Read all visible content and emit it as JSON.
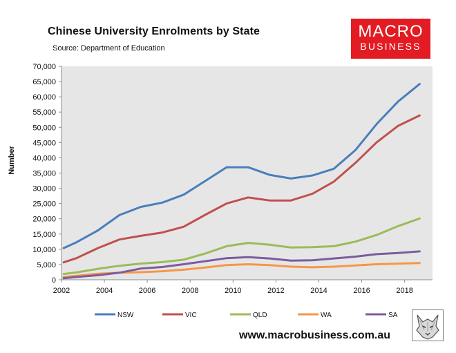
{
  "header": {
    "title": "Chinese University Enrolments by State",
    "subtitle": "Source: Department of Education"
  },
  "brand": {
    "line1": "MACRO",
    "line2": "BUSINESS",
    "color": "#e31b23"
  },
  "footer": {
    "website": "www.macrobusiness.com.au"
  },
  "chart_data": {
    "type": "line",
    "title": "Chinese University Enrolments by State",
    "subtitle": "Source: Department of Education",
    "xlabel": "",
    "ylabel": "Number",
    "xlim": [
      2002,
      2019.3
    ],
    "ylim": [
      0,
      70000
    ],
    "x_ticks": [
      2002,
      2004,
      2006,
      2008,
      2010,
      2012,
      2014,
      2016,
      2018
    ],
    "y_ticks": [
      0,
      5000,
      10000,
      15000,
      20000,
      25000,
      30000,
      35000,
      40000,
      45000,
      50000,
      55000,
      60000,
      65000,
      70000
    ],
    "y_tick_labels": [
      "0",
      "5,000",
      "10,000",
      "15,000",
      "20,000",
      "25,000",
      "30,000",
      "35,000",
      "40,000",
      "45,000",
      "50,000",
      "55,000",
      "60,000",
      "65,000",
      "70,000"
    ],
    "grid": false,
    "background": "#e6e6e6",
    "legend_position": "bottom",
    "x": [
      2002.1,
      2002.7,
      2003.7,
      2004.7,
      2005.7,
      2006.7,
      2007.7,
      2008.7,
      2009.7,
      2010.7,
      2011.7,
      2012.7,
      2013.7,
      2014.7,
      2015.7,
      2016.7,
      2017.7,
      2018.7
    ],
    "series": [
      {
        "name": "NSW",
        "color": "#4a7ebb",
        "values": [
          10400,
          12300,
          16200,
          21200,
          23900,
          25300,
          27900,
          32400,
          36900,
          36900,
          34400,
          33200,
          34200,
          36400,
          42500,
          51100,
          58500,
          64200
        ]
      },
      {
        "name": "VIC",
        "color": "#c0504d",
        "values": [
          5700,
          7100,
          10400,
          13200,
          14400,
          15500,
          17400,
          21300,
          25000,
          27000,
          26000,
          26000,
          28200,
          32200,
          38300,
          45100,
          50500,
          53900
        ]
      },
      {
        "name": "QLD",
        "color": "#9bbb59",
        "values": [
          1900,
          2400,
          3600,
          4600,
          5300,
          5800,
          6600,
          8600,
          11000,
          12100,
          11500,
          10600,
          10700,
          11000,
          12500,
          14700,
          17600,
          20100
        ]
      },
      {
        "name": "WA",
        "color": "#f79646",
        "values": [
          900,
          1300,
          2000,
          2300,
          2500,
          2800,
          3300,
          4000,
          4800,
          5100,
          4800,
          4300,
          4100,
          4300,
          4700,
          5100,
          5300,
          5500
        ]
      },
      {
        "name": "SA",
        "color": "#7b5c9e",
        "values": [
          500,
          900,
          1500,
          2300,
          3700,
          4200,
          5100,
          6100,
          7100,
          7400,
          7000,
          6300,
          6400,
          7000,
          7600,
          8400,
          8800,
          9300
        ]
      }
    ]
  }
}
